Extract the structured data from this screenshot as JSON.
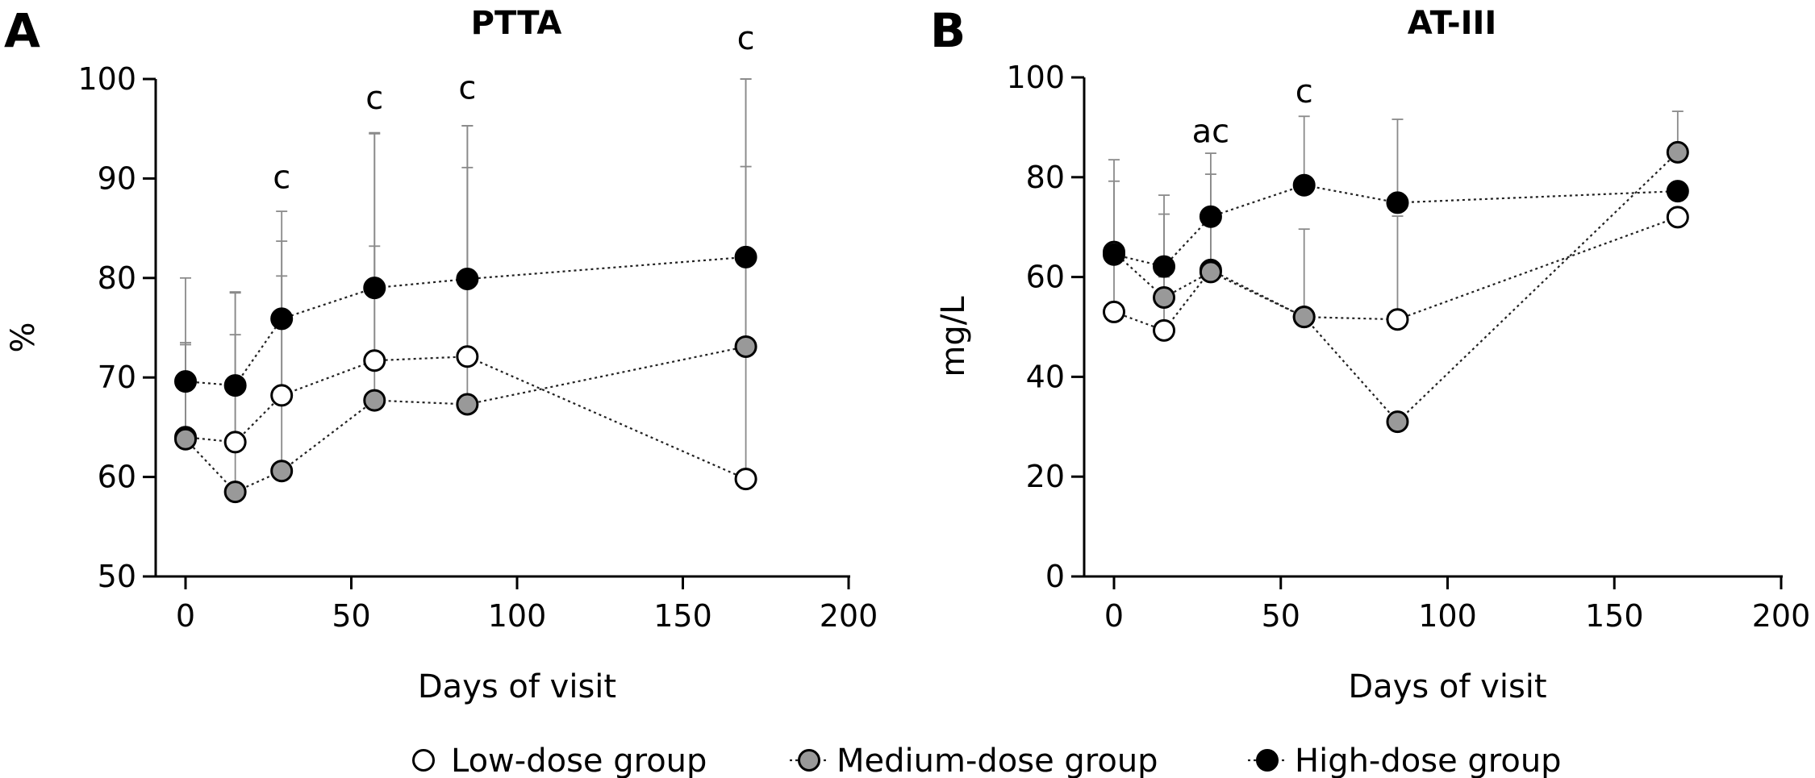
{
  "legend": [
    {
      "label": "Low-dose group",
      "fill": "#ffffff"
    },
    {
      "label": "Medium-dose group",
      "fill": "#999999"
    },
    {
      "label": "High-dose group",
      "fill": "#000000"
    }
  ],
  "chart_data": [
    {
      "type": "line",
      "panel": "A",
      "title": "PTTA",
      "xlabel": "Days of visit",
      "ylabel": "%",
      "xlim": [
        0,
        200
      ],
      "ylim": [
        50,
        100
      ],
      "xticks": [
        0,
        50,
        100,
        150,
        200
      ],
      "yticks": [
        50,
        60,
        70,
        80,
        90,
        100
      ],
      "grid": false,
      "legend_position": "bottom",
      "annotations": [
        {
          "x": 29,
          "y": 89,
          "text": "c"
        },
        {
          "x": 57,
          "y": 97,
          "text": "c"
        },
        {
          "x": 85,
          "y": 98,
          "text": "c"
        },
        {
          "x": 169,
          "y": 103,
          "text": "c"
        }
      ],
      "series": [
        {
          "name": "Low-dose group",
          "fill": "#ffffff",
          "x": [
            0,
            15,
            29,
            57,
            85,
            169
          ],
          "y": [
            64,
            63.5,
            68.2,
            71.7,
            72.1,
            59.8
          ],
          "error_upper": [
            73.5,
            74.3,
            80.2,
            83.2,
            91.1,
            91.2
          ]
        },
        {
          "name": "Medium-dose group",
          "fill": "#999999",
          "x": [
            0,
            15,
            29,
            57,
            85,
            169
          ],
          "y": [
            63.8,
            58.5,
            60.6,
            67.7,
            67.3,
            73.1
          ],
          "error_upper": [
            73.3,
            78.6,
            83.7,
            94.5,
            95.3,
            100
          ]
        },
        {
          "name": "High-dose group",
          "fill": "#000000",
          "x": [
            0,
            15,
            29,
            57,
            85,
            169
          ],
          "y": [
            69.6,
            69.2,
            75.9,
            79,
            79.9,
            82.1
          ],
          "error_upper": [
            80,
            78.5,
            86.7,
            94.6,
            95.3,
            100
          ]
        }
      ]
    },
    {
      "type": "line",
      "panel": "B",
      "title": "AT-III",
      "xlabel": "Days of visit",
      "ylabel": "mg/L",
      "xlim": [
        0,
        200
      ],
      "ylim": [
        0,
        100
      ],
      "xticks": [
        0,
        50,
        100,
        150,
        200
      ],
      "yticks": [
        0,
        20,
        40,
        60,
        80,
        100
      ],
      "grid": false,
      "legend_position": "bottom",
      "annotations": [
        {
          "x": 29,
          "y": 87,
          "text": "ac"
        },
        {
          "x": 57,
          "y": 95,
          "text": "c"
        }
      ],
      "series": [
        {
          "name": "Low-dose group",
          "fill": "#ffffff",
          "x": [
            0,
            15,
            29,
            57,
            85,
            169
          ],
          "y": [
            53,
            49.3,
            61.4,
            52,
            51.5,
            72
          ],
          "error_upper": [
            64.5,
            60,
            72.2,
            69.6,
            72.2,
            72
          ]
        },
        {
          "name": "Medium-dose group",
          "fill": "#999999",
          "x": [
            0,
            15,
            29,
            57,
            85,
            169
          ],
          "y": [
            65,
            55.9,
            61,
            52,
            31,
            85
          ],
          "error_upper": [
            79.2,
            72.6,
            80.6,
            52,
            31,
            93.2
          ]
        },
        {
          "name": "High-dose group",
          "fill": "#000000",
          "x": [
            0,
            15,
            29,
            57,
            85,
            169
          ],
          "y": [
            64.5,
            62.1,
            72.1,
            78.4,
            74.9,
            77.2
          ],
          "error_upper": [
            83.5,
            76.4,
            84.8,
            92.2,
            91.6,
            77.2
          ]
        }
      ]
    }
  ]
}
